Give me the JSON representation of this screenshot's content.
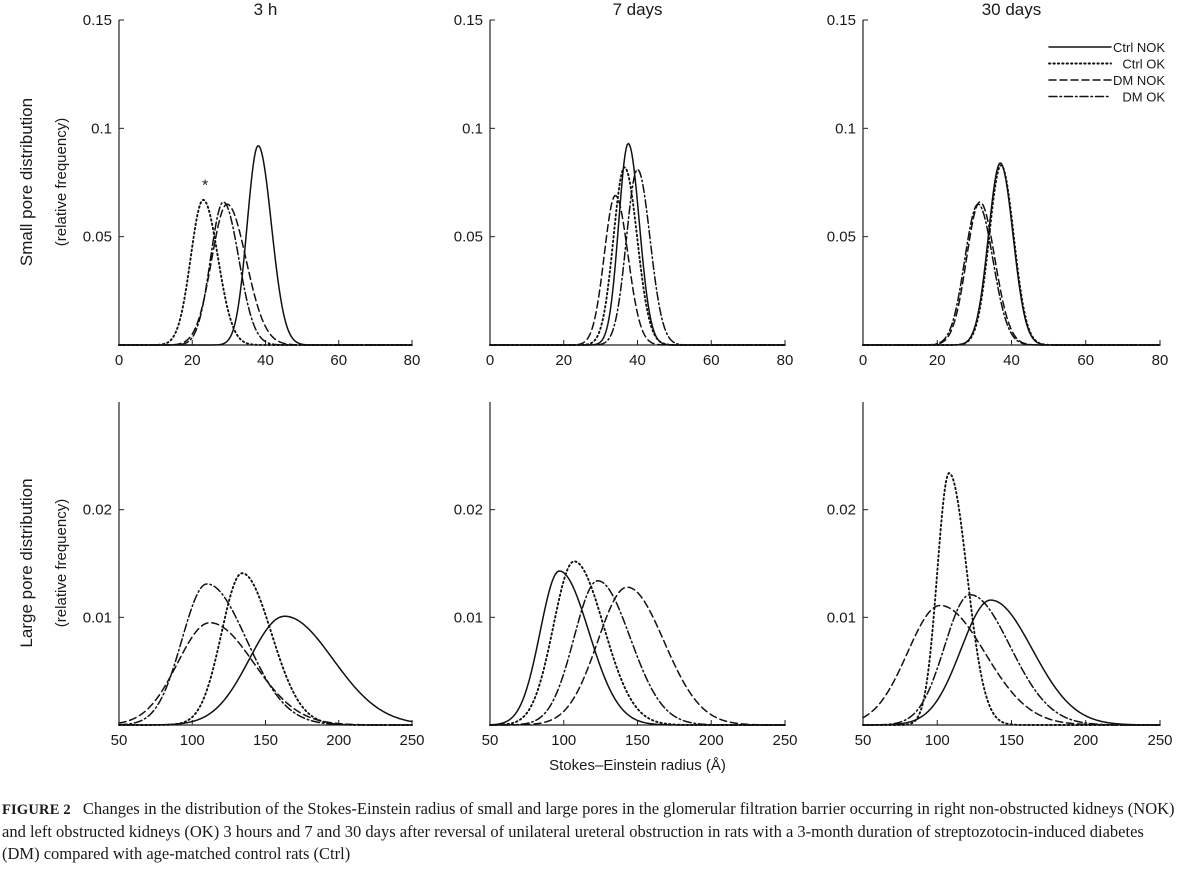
{
  "figure": {
    "caption_label": "FIGURE 2",
    "caption_text": "Changes in the distribution of the Stokes-Einstein radius of small and large pores in the glomerular filtration barrier occurring in right non-obstructed kidneys (NOK) and left obstructed kidneys (OK) 3 hours and 7 and 30 days after reversal of unilateral ureteral obstruction in rats with a 3-month duration of streptozotocin-induced diabetes (DM) compared with age-matched control rats (Ctrl)",
    "shared_xlabel": "Stokes–Einstein radius (Å)",
    "row_labels": [
      {
        "line1": "Small pore distribution",
        "line2": "(relative frequency)"
      },
      {
        "line1": "Large pore distribution",
        "line2": "(relative frequency)"
      }
    ],
    "legend": [
      {
        "name": "Ctrl NOK",
        "dash": "solid"
      },
      {
        "name": "Ctrl OK",
        "dash": "dotted"
      },
      {
        "name": "DM NOK",
        "dash": "dashed"
      },
      {
        "name": "DM OK",
        "dash": "dashdot"
      }
    ],
    "line_color": "#111111"
  },
  "chart_data": [
    {
      "type": "line",
      "panel": "small-3h",
      "title": "3 h",
      "xlim": [
        0,
        80
      ],
      "ylim": [
        0,
        0.15
      ],
      "xticks": [
        "0",
        "20",
        "40",
        "60",
        "80"
      ],
      "xtick_values": [
        0,
        20,
        40,
        60,
        80
      ],
      "yticks": [
        "0.05",
        "0.1",
        "0.15"
      ],
      "ytick_values": [
        0.05,
        0.1,
        0.15
      ],
      "annotation": {
        "text": "*",
        "x": 23.5,
        "y": 0.076
      },
      "series": [
        {
          "name": "Ctrl NOK",
          "dash": "solid",
          "peak_x": 38,
          "peak_y": 0.092,
          "sd_left": 3.0,
          "sd_right": 3.6
        },
        {
          "name": "Ctrl OK",
          "dash": "dotted",
          "peak_x": 23,
          "peak_y": 0.067,
          "sd_left": 3.4,
          "sd_right": 4.0
        },
        {
          "name": "DM NOK",
          "dash": "dashed",
          "peak_x": 29.5,
          "peak_y": 0.065,
          "sd_left": 4.2,
          "sd_right": 5.2
        },
        {
          "name": "DM OK",
          "dash": "dashdot",
          "peak_x": 28.5,
          "peak_y": 0.066,
          "sd_left": 3.5,
          "sd_right": 4.2
        }
      ]
    },
    {
      "type": "line",
      "panel": "small-7d",
      "title": "7 days",
      "xlim": [
        0,
        80
      ],
      "ylim": [
        0,
        0.15
      ],
      "xticks": [
        "0",
        "20",
        "40",
        "60",
        "80"
      ],
      "xtick_values": [
        0,
        20,
        40,
        60,
        80
      ],
      "yticks": [
        "0.05",
        "0.1",
        "0.15"
      ],
      "ytick_values": [
        0.05,
        0.1,
        0.15
      ],
      "series": [
        {
          "name": "Ctrl NOK",
          "dash": "solid",
          "peak_x": 37.5,
          "peak_y": 0.093,
          "sd_left": 2.6,
          "sd_right": 3.0
        },
        {
          "name": "Ctrl OK",
          "dash": "dotted",
          "peak_x": 36.5,
          "peak_y": 0.082,
          "sd_left": 3.0,
          "sd_right": 3.4
        },
        {
          "name": "DM NOK",
          "dash": "dashed",
          "peak_x": 34,
          "peak_y": 0.069,
          "sd_left": 3.0,
          "sd_right": 3.4
        },
        {
          "name": "DM OK",
          "dash": "dashdot",
          "peak_x": 40,
          "peak_y": 0.081,
          "sd_left": 3.0,
          "sd_right": 3.4
        }
      ]
    },
    {
      "type": "line",
      "panel": "small-30d",
      "title": "30 days",
      "xlim": [
        0,
        80
      ],
      "ylim": [
        0,
        0.15
      ],
      "xticks": [
        "0",
        "20",
        "40",
        "60",
        "80"
      ],
      "xtick_values": [
        0,
        20,
        40,
        60,
        80
      ],
      "yticks": [
        "0.05",
        "0.1",
        "0.15"
      ],
      "ytick_values": [
        0.05,
        0.1,
        0.15
      ],
      "series": [
        {
          "name": "Ctrl NOK",
          "dash": "solid",
          "peak_x": 37,
          "peak_y": 0.084,
          "sd_left": 3.2,
          "sd_right": 3.4
        },
        {
          "name": "Ctrl OK",
          "dash": "dotted",
          "peak_x": 37.2,
          "peak_y": 0.083,
          "sd_left": 3.2,
          "sd_right": 3.4
        },
        {
          "name": "DM NOK",
          "dash": "dashed",
          "peak_x": 31.5,
          "peak_y": 0.066,
          "sd_left": 3.6,
          "sd_right": 4.0
        },
        {
          "name": "DM OK",
          "dash": "dashdot",
          "peak_x": 31,
          "peak_y": 0.065,
          "sd_left": 3.6,
          "sd_right": 4.0
        }
      ]
    },
    {
      "type": "line",
      "panel": "large-3h",
      "title": "",
      "xlim": [
        50,
        250
      ],
      "ylim": [
        0,
        0.03
      ],
      "xticks": [
        "50",
        "100",
        "150",
        "200",
        "250"
      ],
      "xtick_values": [
        50,
        100,
        150,
        200,
        250
      ],
      "yticks": [
        "0.01",
        "0.02"
      ],
      "ytick_values": [
        0.01,
        0.02
      ],
      "series": [
        {
          "name": "Ctrl NOK",
          "dash": "solid",
          "peak_x": 163,
          "peak_y": 0.0101,
          "sd_left": 24,
          "sd_right": 33
        },
        {
          "name": "Ctrl OK",
          "dash": "dotted",
          "peak_x": 134,
          "peak_y": 0.0141,
          "sd_left": 14,
          "sd_right": 20
        },
        {
          "name": "DM NOK",
          "dash": "dashed",
          "peak_x": 112,
          "peak_y": 0.0095,
          "sd_left": 22,
          "sd_right": 30
        },
        {
          "name": "DM OK",
          "dash": "dashdot",
          "peak_x": 110,
          "peak_y": 0.0131,
          "sd_left": 17,
          "sd_right": 27
        }
      ]
    },
    {
      "type": "line",
      "panel": "large-7d",
      "title": "",
      "xlim": [
        50,
        250
      ],
      "ylim": [
        0,
        0.03
      ],
      "xticks": [
        "50",
        "100",
        "150",
        "200",
        "250"
      ],
      "xtick_values": [
        50,
        100,
        150,
        200,
        250
      ],
      "yticks": [
        "0.01",
        "0.02"
      ],
      "ytick_values": [
        0.01,
        0.02
      ],
      "xlabel": "Stokes–Einstein radius (Å)",
      "series": [
        {
          "name": "Ctrl NOK",
          "dash": "solid",
          "peak_x": 97,
          "peak_y": 0.0143,
          "sd_left": 13,
          "sd_right": 20
        },
        {
          "name": "Ctrl OK",
          "dash": "dotted",
          "peak_x": 107,
          "peak_y": 0.0152,
          "sd_left": 14,
          "sd_right": 20
        },
        {
          "name": "DM NOK",
          "dash": "dashed",
          "peak_x": 143,
          "peak_y": 0.0128,
          "sd_left": 20,
          "sd_right": 25
        },
        {
          "name": "DM OK",
          "dash": "dashdot",
          "peak_x": 123,
          "peak_y": 0.0134,
          "sd_left": 16,
          "sd_right": 22
        }
      ]
    },
    {
      "type": "line",
      "panel": "large-30d",
      "title": "",
      "xlim": [
        50,
        250
      ],
      "ylim": [
        0,
        0.03
      ],
      "xticks": [
        "50",
        "100",
        "150",
        "200",
        "250"
      ],
      "xtick_values": [
        50,
        100,
        150,
        200,
        250
      ],
      "yticks": [
        "0.01",
        "0.02"
      ],
      "ytick_values": [
        0.01,
        0.02
      ],
      "series": [
        {
          "name": "Ctrl NOK",
          "dash": "solid",
          "peak_x": 136,
          "peak_y": 0.0116,
          "sd_left": 20,
          "sd_right": 28
        },
        {
          "name": "Ctrl OK",
          "dash": "dotted",
          "peak_x": 108,
          "peak_y": 0.0234,
          "sd_left": 8,
          "sd_right": 12
        },
        {
          "name": "DM NOK",
          "dash": "dashed",
          "peak_x": 102,
          "peak_y": 0.0111,
          "sd_left": 22,
          "sd_right": 30
        },
        {
          "name": "DM OK",
          "dash": "dashdot",
          "peak_x": 122,
          "peak_y": 0.0121,
          "sd_left": 17,
          "sd_right": 27
        }
      ]
    }
  ]
}
